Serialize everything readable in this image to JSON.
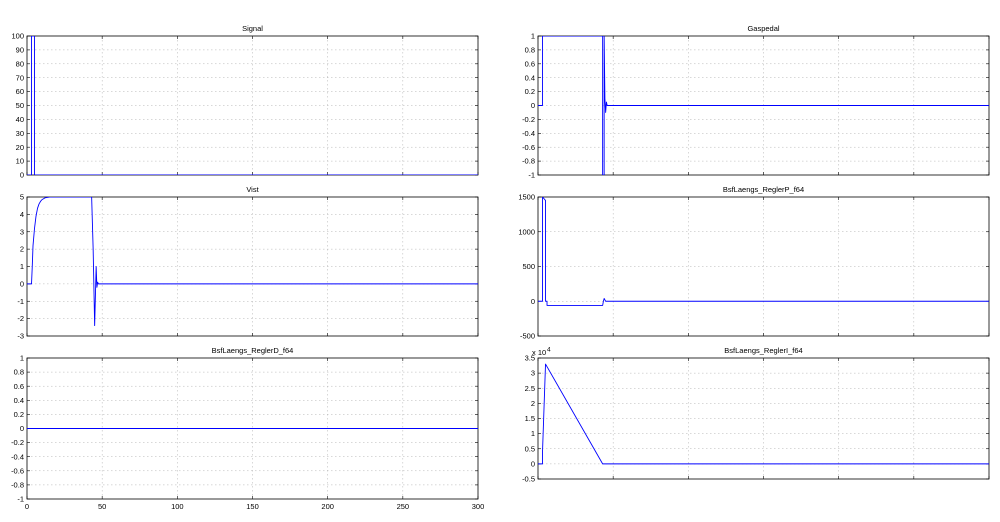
{
  "chart_data": [
    {
      "type": "line",
      "title": "Signal",
      "xlim": [
        0,
        300
      ],
      "ylim": [
        0,
        100
      ],
      "xticks": [
        0,
        50,
        100,
        150,
        200,
        250,
        300
      ],
      "yticks": [
        0,
        10,
        20,
        30,
        40,
        50,
        60,
        70,
        80,
        90,
        100
      ],
      "show_xticklabels": false,
      "grid": true,
      "series": [
        {
          "color": "#0000ff",
          "x": [
            0,
            3,
            3,
            5,
            5,
            300
          ],
          "y": [
            0,
            0,
            100,
            100,
            0,
            0
          ]
        }
      ]
    },
    {
      "type": "line",
      "title": "Gaspedal",
      "xlim": [
        0,
        300
      ],
      "ylim": [
        -1,
        1
      ],
      "xticks": [
        0,
        50,
        100,
        150,
        200,
        250,
        300
      ],
      "yticks": [
        -1,
        -0.8,
        -0.6,
        -0.4,
        -0.2,
        0,
        0.2,
        0.4,
        0.6,
        0.8,
        1
      ],
      "show_xticklabels": false,
      "grid": true,
      "series": [
        {
          "color": "#0000ff",
          "x": [
            0,
            3,
            3,
            43,
            43,
            44,
            44,
            44.5,
            45,
            45.5,
            46,
            300
          ],
          "y": [
            0,
            0,
            1,
            1,
            -1,
            -1,
            1,
            0.1,
            -0.1,
            0.05,
            0,
            0
          ]
        }
      ]
    },
    {
      "type": "line",
      "title": "Vist",
      "xlim": [
        0,
        300
      ],
      "ylim": [
        -3,
        5
      ],
      "xticks": [
        0,
        50,
        100,
        150,
        200,
        250,
        300
      ],
      "yticks": [
        -3,
        -2,
        -1,
        0,
        1,
        2,
        3,
        4,
        5
      ],
      "show_xticklabels": false,
      "grid": true,
      "series": [
        {
          "color": "#0000ff",
          "x": [
            0,
            3,
            3.5,
            4,
            5,
            6,
            7,
            8,
            9,
            10,
            12,
            15,
            43,
            44,
            45,
            46,
            46.5,
            47,
            47.5,
            48,
            300
          ],
          "y": [
            0,
            0,
            1,
            2.2,
            3.2,
            3.9,
            4.35,
            4.6,
            4.75,
            4.85,
            4.95,
            5,
            5,
            2,
            -2.4,
            1,
            -0.2,
            0.1,
            0,
            0,
            0
          ]
        }
      ]
    },
    {
      "type": "line",
      "title": "BsfLaengs_ReglerP_f64",
      "xlim": [
        0,
        300
      ],
      "ylim": [
        -500,
        1500
      ],
      "xticks": [
        0,
        50,
        100,
        150,
        200,
        250,
        300
      ],
      "yticks": [
        -500,
        0,
        500,
        1000,
        1500
      ],
      "show_xticklabels": false,
      "grid": true,
      "series": [
        {
          "color": "#0000ff",
          "x": [
            0,
            3,
            3,
            5,
            5,
            6,
            6,
            43,
            43.5,
            44,
            45,
            300
          ],
          "y": [
            0,
            0,
            1500,
            1450,
            0,
            0,
            -60,
            -60,
            0,
            40,
            0,
            0
          ]
        }
      ]
    },
    {
      "type": "line",
      "title": "BsfLaengs_ReglerD_f64",
      "xlim": [
        0,
        300
      ],
      "ylim": [
        -1,
        1
      ],
      "xticks": [
        0,
        50,
        100,
        150,
        200,
        250,
        300
      ],
      "xticklabels": [
        "0",
        "50",
        "100",
        "150",
        "200",
        "250",
        "300"
      ],
      "yticks": [
        -1,
        -0.8,
        -0.6,
        -0.4,
        -0.2,
        0,
        0.2,
        0.4,
        0.6,
        0.8,
        1
      ],
      "show_xticklabels": true,
      "grid": true,
      "series": [
        {
          "color": "#0000ff",
          "x": [
            0,
            300
          ],
          "y": [
            0,
            0
          ]
        }
      ]
    },
    {
      "type": "line",
      "title": "BsfLaengs_ReglerI_f64",
      "xlim": [
        0,
        300
      ],
      "ylim": [
        -0.5,
        3.5
      ],
      "y_multiplier": "x 10",
      "y_exponent": "4",
      "xticks": [
        0,
        50,
        100,
        150,
        200,
        250,
        300
      ],
      "yticks": [
        -0.5,
        0,
        0.5,
        1,
        1.5,
        2,
        2.5,
        3,
        3.5
      ],
      "show_xticklabels": false,
      "grid": true,
      "series": [
        {
          "color": "#0000ff",
          "x": [
            0,
            3,
            3,
            5,
            43,
            44,
            300
          ],
          "y": [
            0,
            0,
            0.4,
            3.3,
            0,
            0,
            0
          ]
        }
      ]
    }
  ]
}
